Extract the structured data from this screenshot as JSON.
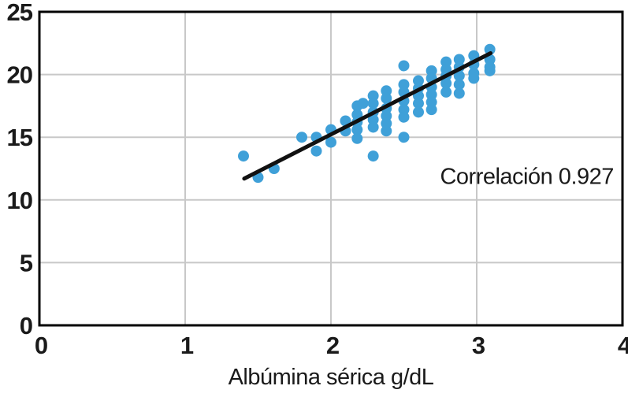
{
  "chart_data": {
    "type": "scatter",
    "title": "",
    "xlabel": "Albúmina sérica g/dL",
    "ylabel": "",
    "xlim": [
      0,
      4
    ],
    "ylim": [
      0,
      25
    ],
    "x_ticks": [
      0,
      1,
      2,
      3,
      4
    ],
    "y_ticks": [
      0,
      5,
      10,
      15,
      20,
      25
    ],
    "grid": true,
    "legend": "none",
    "annotation": {
      "text": "Correlación 0.927",
      "x": 3.94,
      "y": 11.9
    },
    "series": [
      {
        "name": "scatter-points",
        "points": [
          [
            1.4,
            13.5
          ],
          [
            1.5,
            11.8
          ],
          [
            1.61,
            12.5
          ],
          [
            1.8,
            15.0
          ],
          [
            1.9,
            15.0
          ],
          [
            1.9,
            13.9
          ],
          [
            2.0,
            15.6
          ],
          [
            2.0,
            14.6
          ],
          [
            2.1,
            16.3
          ],
          [
            2.1,
            15.5
          ],
          [
            2.18,
            17.5
          ],
          [
            2.18,
            16.8
          ],
          [
            2.18,
            16.2
          ],
          [
            2.18,
            15.6
          ],
          [
            2.18,
            14.9
          ],
          [
            2.22,
            17.7
          ],
          [
            2.29,
            18.3
          ],
          [
            2.29,
            17.7
          ],
          [
            2.29,
            17.0
          ],
          [
            2.29,
            16.4
          ],
          [
            2.29,
            15.8
          ],
          [
            2.29,
            13.5
          ],
          [
            2.38,
            18.7
          ],
          [
            2.38,
            18.1
          ],
          [
            2.38,
            17.3
          ],
          [
            2.38,
            16.7
          ],
          [
            2.38,
            16.1
          ],
          [
            2.38,
            15.5
          ],
          [
            2.5,
            20.7
          ],
          [
            2.5,
            19.2
          ],
          [
            2.5,
            18.6
          ],
          [
            2.5,
            17.9
          ],
          [
            2.5,
            17.2
          ],
          [
            2.5,
            16.6
          ],
          [
            2.5,
            15.0
          ],
          [
            2.6,
            19.5
          ],
          [
            2.6,
            18.9
          ],
          [
            2.6,
            18.3
          ],
          [
            2.6,
            17.7
          ],
          [
            2.6,
            17.0
          ],
          [
            2.69,
            20.3
          ],
          [
            2.69,
            19.7
          ],
          [
            2.69,
            19.0
          ],
          [
            2.69,
            18.4
          ],
          [
            2.69,
            17.8
          ],
          [
            2.69,
            17.2
          ],
          [
            2.79,
            21.0
          ],
          [
            2.79,
            20.4
          ],
          [
            2.79,
            19.9
          ],
          [
            2.79,
            19.3
          ],
          [
            2.79,
            18.6
          ],
          [
            2.88,
            21.2
          ],
          [
            2.88,
            20.6
          ],
          [
            2.88,
            19.9
          ],
          [
            2.88,
            19.2
          ],
          [
            2.88,
            18.5
          ],
          [
            2.98,
            21.5
          ],
          [
            2.98,
            20.8
          ],
          [
            2.98,
            20.1
          ],
          [
            2.98,
            19.7
          ],
          [
            3.09,
            22.0
          ],
          [
            3.09,
            21.2
          ],
          [
            3.09,
            20.6
          ],
          [
            3.09,
            20.3
          ]
        ]
      }
    ],
    "trendline": {
      "x1": 1.405,
      "y1": 11.7,
      "x2": 3.095,
      "y2": 21.7
    },
    "colors": {
      "dot": "#3FA0D8",
      "trend": "#111111",
      "grid": "#c8c8c8",
      "frame": "#000000",
      "text": "#1a1a1a",
      "background": "#ffffff"
    }
  }
}
